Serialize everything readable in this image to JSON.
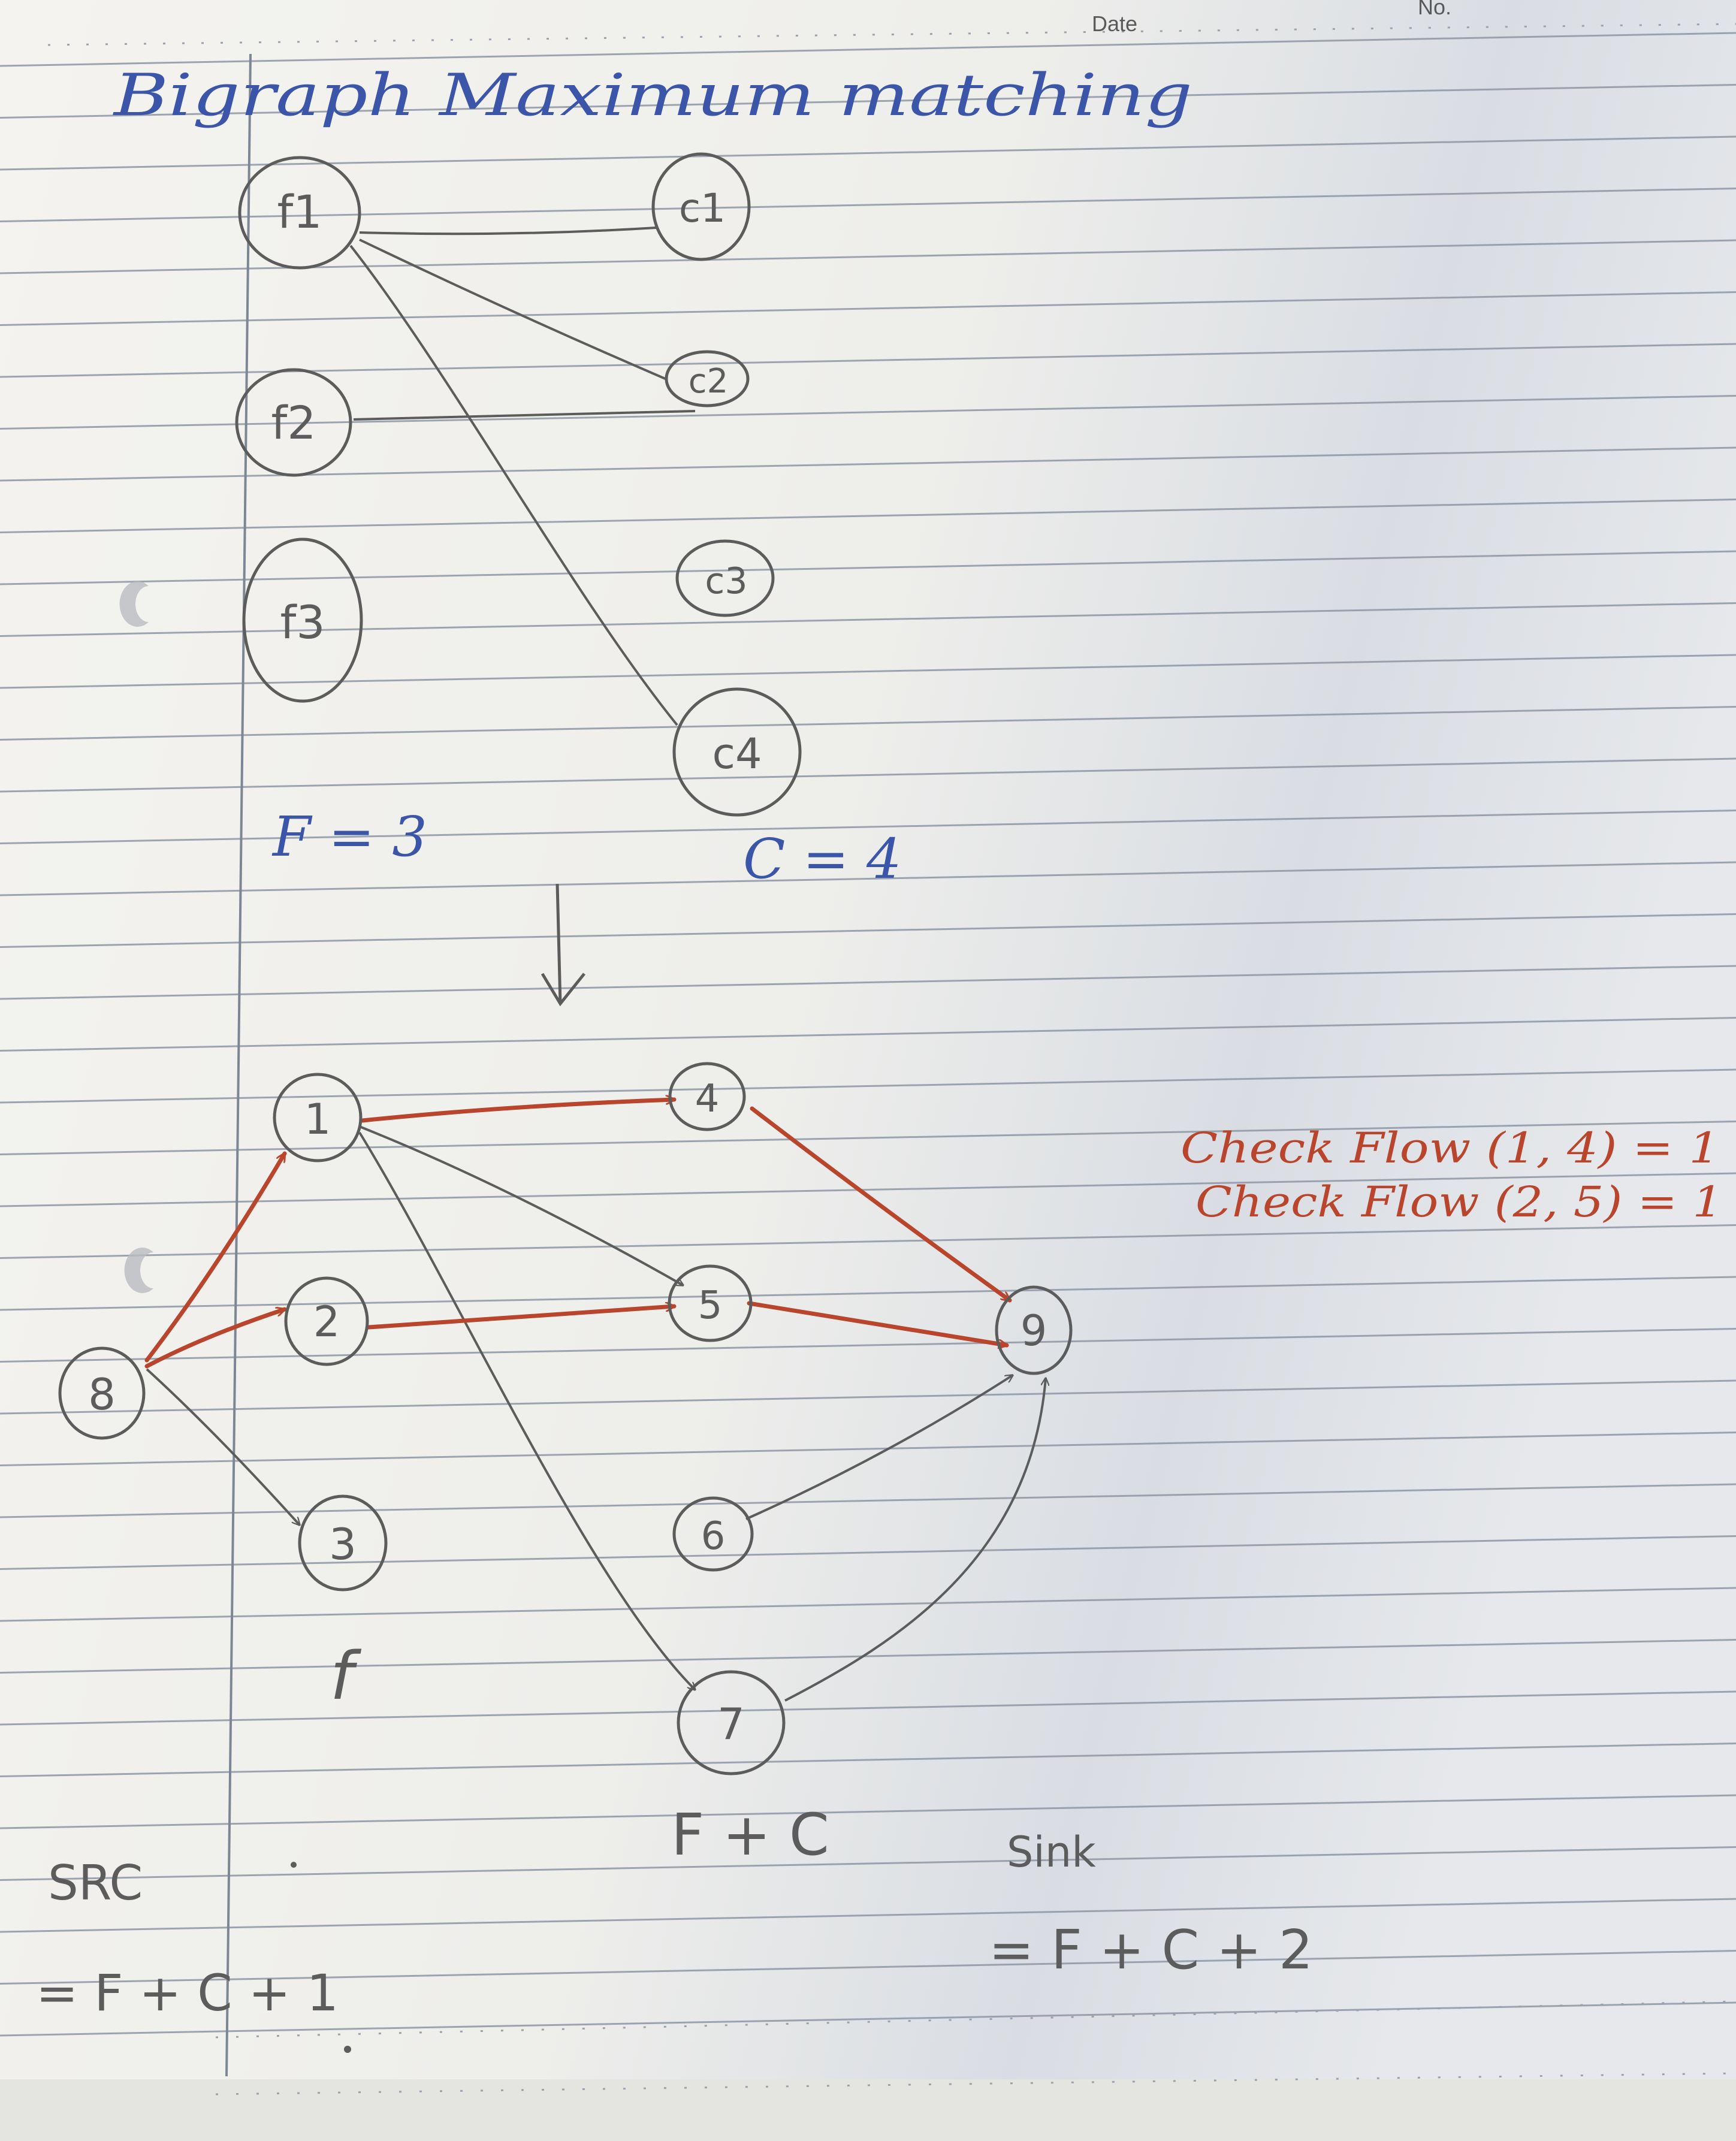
{
  "header": {
    "date_label": "Date",
    "no_label": "No."
  },
  "title": "Bigraph Maximum matching",
  "bipartite": {
    "left_nodes": [
      {
        "id": "f1",
        "label": "f1"
      },
      {
        "id": "f2",
        "label": "f2"
      },
      {
        "id": "f3",
        "label": "f3"
      }
    ],
    "right_nodes": [
      {
        "id": "c1",
        "label": "c1"
      },
      {
        "id": "c2",
        "label": "c2"
      },
      {
        "id": "c3",
        "label": "c3"
      },
      {
        "id": "c4",
        "label": "c4"
      }
    ],
    "edges": [
      [
        "f1",
        "c1"
      ],
      [
        "f1",
        "c2"
      ],
      [
        "f1",
        "c4"
      ],
      [
        "f2",
        "c2"
      ]
    ],
    "f_count_label": "F = 3",
    "c_count_label": "C = 4"
  },
  "flow_network": {
    "nodes": [
      "8",
      "1",
      "2",
      "3",
      "4",
      "5",
      "6",
      "7",
      "9"
    ],
    "edges": [
      [
        "8",
        "1"
      ],
      [
        "8",
        "2"
      ],
      [
        "8",
        "3"
      ],
      [
        "1",
        "4"
      ],
      [
        "1",
        "5"
      ],
      [
        "1",
        "7"
      ],
      [
        "2",
        "5"
      ],
      [
        "4",
        "9"
      ],
      [
        "5",
        "9"
      ],
      [
        "6",
        "9"
      ],
      [
        "7",
        "9"
      ]
    ],
    "highlighted_edges": [
      [
        "8",
        "1"
      ],
      [
        "8",
        "2"
      ],
      [
        "1",
        "4"
      ],
      [
        "2",
        "5"
      ],
      [
        "4",
        "9"
      ],
      [
        "5",
        "9"
      ]
    ],
    "f_label": "f",
    "fc_label": "F + C",
    "src_label": "SRC",
    "src_formula": "= F + C + 1",
    "sink_label": "Sink",
    "sink_formula": "= F + C + 2"
  },
  "annotations": [
    "Check Flow (1, 4) = 1",
    "Check Flow (2, 5) = 1"
  ],
  "colors": {
    "paper": "#f3f2ee",
    "rule_line": "#8e97a6",
    "blue_ink": "#3b55a8",
    "pencil": "#5c5c5c",
    "red_ink": "#b8452c"
  }
}
